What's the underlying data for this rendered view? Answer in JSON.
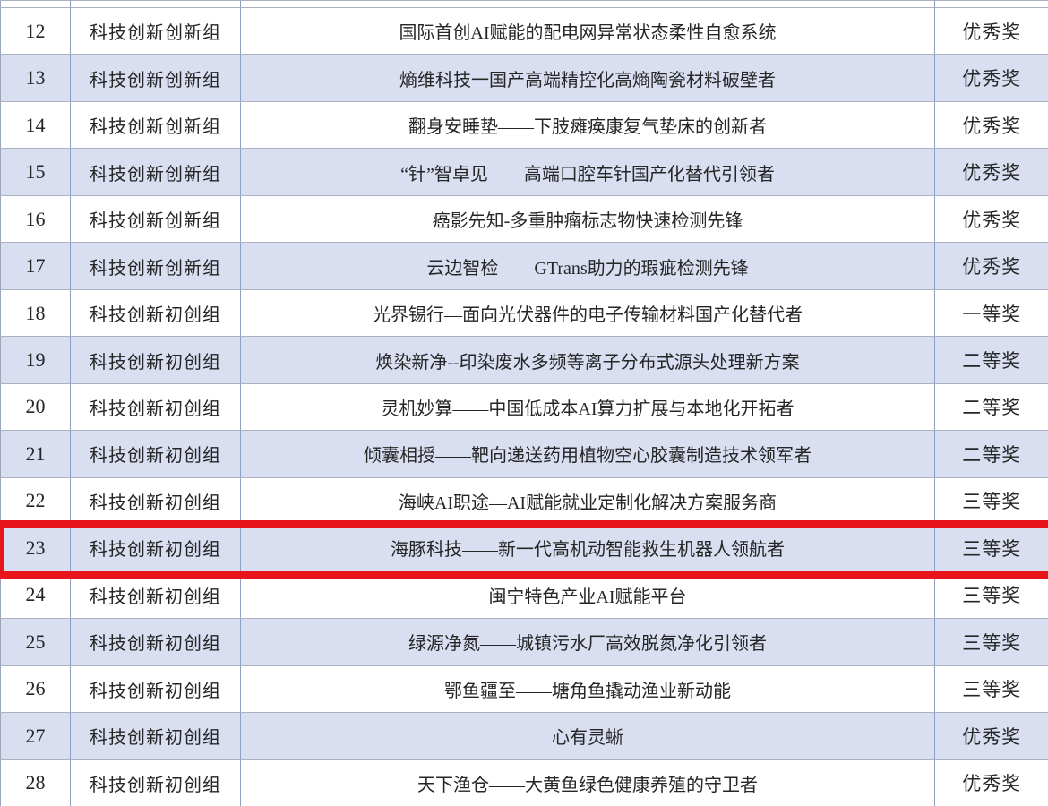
{
  "table": {
    "rows": [
      {
        "no": "12",
        "group": "科技创新创新组",
        "project": "国际首创AI赋能的配电网异常状态柔性自愈系统",
        "award": "优秀奖"
      },
      {
        "no": "13",
        "group": "科技创新创新组",
        "project": "熵维科技一国产高端精控化高熵陶瓷材料破壁者",
        "award": "优秀奖"
      },
      {
        "no": "14",
        "group": "科技创新创新组",
        "project": "翻身安睡垫——下肢瘫痪康复气垫床的创新者",
        "award": "优秀奖"
      },
      {
        "no": "15",
        "group": "科技创新创新组",
        "project": "“针”智卓见——高端口腔车针国产化替代引领者",
        "award": "优秀奖"
      },
      {
        "no": "16",
        "group": "科技创新创新组",
        "project": "癌影先知-多重肿瘤标志物快速检测先锋",
        "award": "优秀奖"
      },
      {
        "no": "17",
        "group": "科技创新创新组",
        "project": "云边智检——GTrans助力的瑕疵检测先锋",
        "award": "优秀奖"
      },
      {
        "no": "18",
        "group": "科技创新初创组",
        "project": "光界锡行—面向光伏器件的电子传输材料国产化替代者",
        "award": "一等奖"
      },
      {
        "no": "19",
        "group": "科技创新初创组",
        "project": "焕染新净--印染废水多频等离子分布式源头处理新方案",
        "award": "二等奖"
      },
      {
        "no": "20",
        "group": "科技创新初创组",
        "project": "灵机妙算——中国低成本AI算力扩展与本地化开拓者",
        "award": "二等奖"
      },
      {
        "no": "21",
        "group": "科技创新初创组",
        "project": "倾囊相授——靶向递送药用植物空心胶囊制造技术领军者",
        "award": "二等奖"
      },
      {
        "no": "22",
        "group": "科技创新初创组",
        "project": "海峡AI职途—AI赋能就业定制化解决方案服务商",
        "award": "三等奖"
      },
      {
        "no": "23",
        "group": "科技创新初创组",
        "project": "海豚科技——新一代高机动智能救生机器人领航者",
        "award": "三等奖"
      },
      {
        "no": "24",
        "group": "科技创新初创组",
        "project": "闽宁特色产业AI赋能平台",
        "award": "三等奖"
      },
      {
        "no": "25",
        "group": "科技创新初创组",
        "project": "绿源净氮——城镇污水厂高效脱氮净化引领者",
        "award": "三等奖"
      },
      {
        "no": "26",
        "group": "科技创新初创组",
        "project": "鄂鱼疆至——塘角鱼撬动渔业新动能",
        "award": "三等奖"
      },
      {
        "no": "27",
        "group": "科技创新初创组",
        "project": "心有灵蜥",
        "award": "优秀奖"
      },
      {
        "no": "28",
        "group": "科技创新初创组",
        "project": "天下渔仓——大黄鱼绿色健康养殖的守卫者",
        "award": "优秀奖"
      }
    ]
  },
  "highlight": {
    "row_no": "23"
  },
  "colors": {
    "row_stripe": "#d9dff1",
    "highlight_border": "#e8151c",
    "text": "#262626"
  }
}
